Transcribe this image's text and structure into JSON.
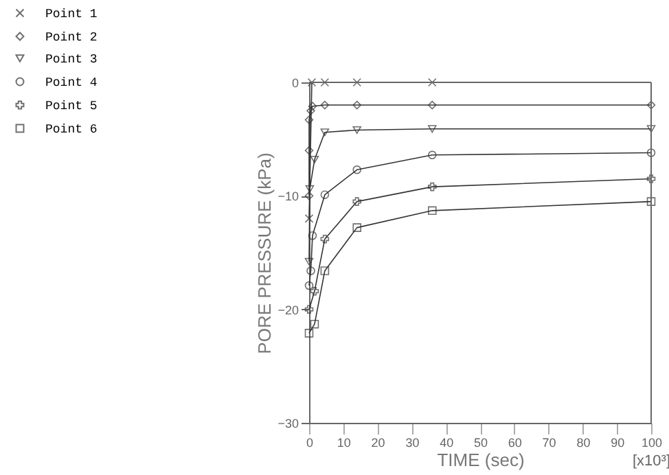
{
  "chart_data": {
    "type": "line",
    "xlabel": "TIME (sec)",
    "ylabel": "PORE PRESSURE (kPa)",
    "xlim": [
      0,
      100
    ],
    "xticks": [
      0,
      10,
      20,
      30,
      40,
      50,
      60,
      70,
      80,
      90,
      100
    ],
    "ylim": [
      -30,
      0
    ],
    "yticks": [
      -30,
      -20,
      -10,
      0
    ],
    "grid": false,
    "legend": "top left",
    "line_style": "solid",
    "annotations": [
      "[x10³]"
    ],
    "series": [
      {
        "name": "Point 1",
        "color": "#333333",
        "marker": "cross",
        "x": [
          0,
          0.8,
          4.6,
          14,
          36
        ],
        "values": [
          -12,
          0,
          0,
          0,
          0
        ]
      },
      {
        "name": "Point 2",
        "color": "#333333",
        "marker": "diamond",
        "x": [
          0,
          0,
          0,
          0.5,
          1,
          4.6,
          14,
          36,
          100
        ],
        "values": [
          -10,
          -6,
          -3.3,
          -2.5,
          -2.1,
          -2.0,
          -2.0,
          -2.0,
          -2.0
        ]
      },
      {
        "name": "Point 3",
        "color": "#333333",
        "marker": "triangle",
        "x": [
          0,
          0.2,
          1.6,
          4.6,
          14,
          36,
          100
        ],
        "values": [
          -15.8,
          -9.4,
          -6.8,
          -4.4,
          -4.2,
          -4.1,
          -4.1
        ]
      },
      {
        "name": "Point 4",
        "color": "#333333",
        "marker": "circle",
        "x": [
          0,
          0.5,
          1,
          4.6,
          14,
          36,
          100
        ],
        "values": [
          -17.9,
          -16.6,
          -13.5,
          -9.9,
          -7.7,
          -6.4,
          -6.2
        ]
      },
      {
        "name": "Point 5",
        "color": "#333333",
        "marker": "plus",
        "x": [
          0,
          1.6,
          4.6,
          14,
          36,
          100
        ],
        "values": [
          -20,
          -18.4,
          -13.8,
          -10.5,
          -9.2,
          -8.5
        ]
      },
      {
        "name": "Point 6",
        "color": "#333333",
        "marker": "square",
        "x": [
          0,
          1.6,
          4.6,
          14,
          36,
          100
        ],
        "values": [
          -22.1,
          -21.3,
          -16.6,
          -12.8,
          -11.3,
          -10.5
        ]
      }
    ]
  }
}
